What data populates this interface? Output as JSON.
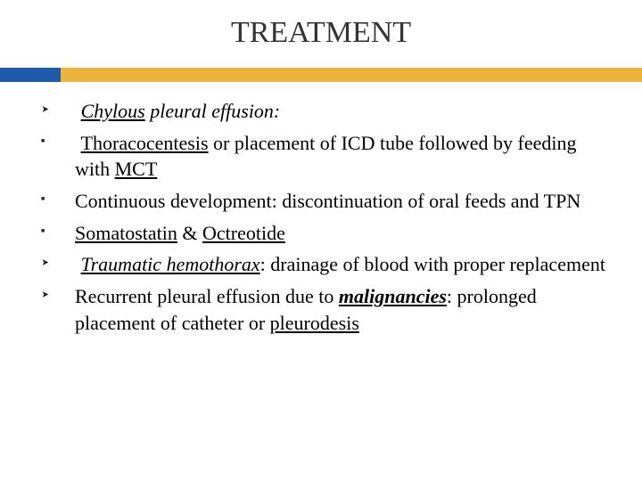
{
  "title": "TREATMENT",
  "bar_left_color": "#1f5aa8",
  "bar_right_color": "#e9b53f",
  "items": [
    {
      "bullet": "arrow",
      "html": "<span class='lead-space'></span><span class='italic underline'>Chylous</span><span class='italic'> pleural effusion:</span>"
    },
    {
      "bullet": "square",
      "html": "<span class='lead-space'></span><span class='underline'>Thoracocentesis</span> or placement of ICD tube followed by feeding with <span class='underline'>MCT</span>"
    },
    {
      "bullet": "square",
      "html": "Continuous development: discontinuation of oral feeds and TPN"
    },
    {
      "bullet": "square",
      "html": "<span class='underline'>Somatostatin</span> &amp; <span class='underline'>Octreotide</span>"
    },
    {
      "bullet": "arrow",
      "html": "<span class='lead-space'></span><span class='italic underline'>Traumatic </span><span class='italic underline'>hemothorax</span>: drainage of blood with proper replacement"
    },
    {
      "bullet": "arrow",
      "html": "Recurrent pleural effusion due to <span class='bold italic underline'>malignancies</span>: prolonged placement of catheter or <span class='underline'>pleurodesis</span>"
    }
  ]
}
